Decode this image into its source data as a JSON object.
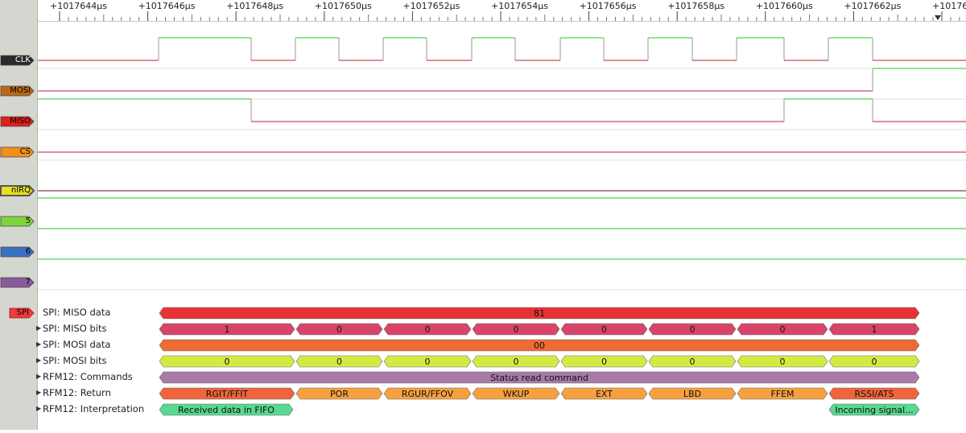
{
  "ruler": {
    "ticks": [
      "+1017644µs",
      "+1017646µs",
      "+1017648µs",
      "+1017650µs",
      "+1017652µs",
      "+1017654µs",
      "+1017656µs",
      "+1017658µs",
      "+1017660µs",
      "+1017662µs",
      "+10176"
    ]
  },
  "channels": [
    {
      "label": "CLK",
      "color": "#2a2a2a",
      "text_color": "#ffffff"
    },
    {
      "label": "MOSI",
      "color": "#b86a14",
      "text_color": "#000000"
    },
    {
      "label": "MISO",
      "color": "#e0201c",
      "text_color": "#000000"
    },
    {
      "label": "CS",
      "color": "#f2901e",
      "text_color": "#000000"
    },
    {
      "label": "nIRQ",
      "color": "#e6e020",
      "text_color": "#000000"
    },
    {
      "label": "5",
      "color": "#7fd43a",
      "text_color": "#000000"
    },
    {
      "label": "6",
      "color": "#3a70c0",
      "text_color": "#000000"
    },
    {
      "label": "7",
      "color": "#8a5a9a",
      "text_color": "#000000"
    }
  ],
  "decoder": {
    "tag": "SPI",
    "tag_color": "#ef3b3b",
    "rows": [
      {
        "label": "SPI: MISO data",
        "expander": false,
        "color": "#e83232",
        "segments": [
          "81"
        ]
      },
      {
        "label": "SPI: MISO bits",
        "expander": true,
        "color": "#d9446a",
        "segments": [
          "1",
          "0",
          "0",
          "0",
          "0",
          "0",
          "0",
          "1"
        ]
      },
      {
        "label": "SPI: MOSI data",
        "expander": true,
        "color": "#f06a34",
        "segments": [
          "00"
        ]
      },
      {
        "label": "SPI: MOSI bits",
        "expander": true,
        "color": "#d4ea44",
        "segments": [
          "0",
          "0",
          "0",
          "0",
          "0",
          "0",
          "0",
          "0"
        ]
      },
      {
        "label": "RFM12: Commands",
        "expander": true,
        "color": "#a87aa8",
        "segments": [
          "Status read command"
        ]
      },
      {
        "label": "RFM12: Return",
        "expander": true,
        "colors": [
          "#f0643c",
          "#f6a040",
          "#f6a040",
          "#f6a040",
          "#f6a040",
          "#f6a040",
          "#f6a040",
          "#f0643c"
        ],
        "segments": [
          "RGIT/FFIT",
          "POR",
          "RGUR/FFOV",
          "WKUP",
          "EXT",
          "LBD",
          "FFEM",
          "RSSI/ATS"
        ]
      },
      {
        "label": "RFM12: Interpretation",
        "expander": true,
        "color": "#58d890",
        "segments": [
          "Received data in FIFO",
          "Incoming signal..."
        ]
      }
    ]
  },
  "colors": {
    "low_trace": "#b8202c",
    "high_trace": "#22c822",
    "grid": "#e2e2e2"
  }
}
